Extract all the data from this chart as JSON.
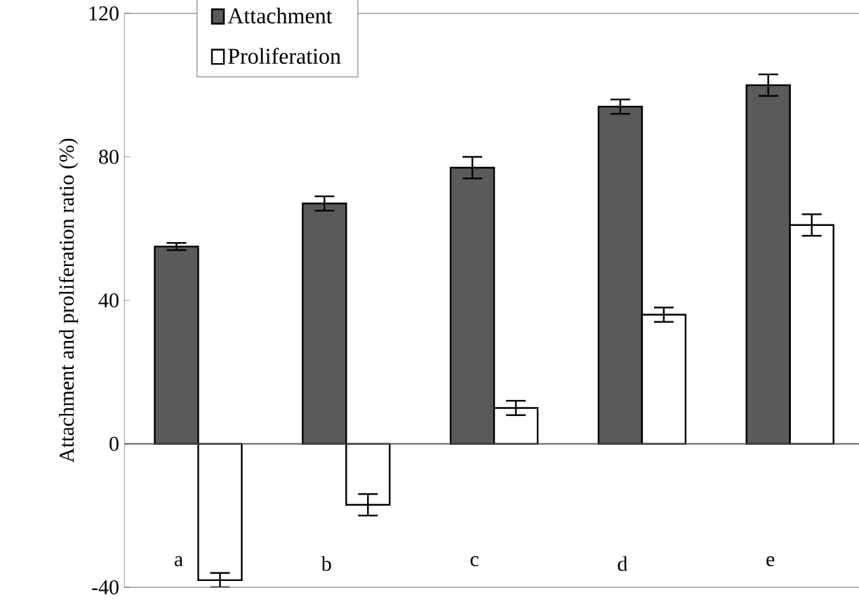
{
  "chart_data": {
    "type": "bar",
    "ylabel": "Attachment and proliferation ratio (%)",
    "categories": [
      "a",
      "b",
      "c",
      "d",
      "e"
    ],
    "series": [
      {
        "name": "Attachment",
        "color": "#5a5a5a",
        "values": [
          55,
          67,
          77,
          94,
          100
        ],
        "errors": [
          1,
          2,
          3,
          2,
          3
        ]
      },
      {
        "name": "Proliferation",
        "color": "#ffffff",
        "values": [
          -38,
          -17,
          10,
          36,
          61
        ],
        "errors": [
          2,
          3,
          2,
          2,
          3
        ]
      }
    ],
    "ylim": [
      -40,
      120
    ],
    "yticks": [
      -40,
      0,
      40,
      80,
      120
    ],
    "legend": "top left",
    "grid": false,
    "ref_lines": [
      {
        "axis": "y",
        "value": 0
      }
    ]
  }
}
